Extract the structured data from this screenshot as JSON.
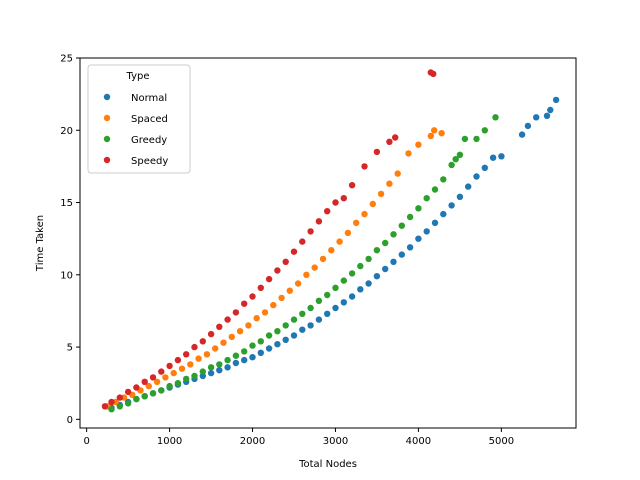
{
  "chart_data": {
    "type": "scatter",
    "title": "",
    "xlabel": "Total Nodes",
    "ylabel": "Time Taken",
    "xlim": [
      -80,
      5900
    ],
    "ylim": [
      -0.6,
      25
    ],
    "xticks": [
      0,
      1000,
      2000,
      3000,
      4000,
      5000
    ],
    "yticks": [
      0,
      5,
      10,
      15,
      20,
      25
    ],
    "grid": false,
    "legend": {
      "title": "Type",
      "placement": "top-left"
    },
    "series": [
      {
        "name": "Normal",
        "color": "#1f77b4",
        "points": [
          [
            300,
            0.8
          ],
          [
            400,
            1.0
          ],
          [
            500,
            1.2
          ],
          [
            600,
            1.4
          ],
          [
            700,
            1.6
          ],
          [
            800,
            1.8
          ],
          [
            900,
            2.0
          ],
          [
            1000,
            2.2
          ],
          [
            1100,
            2.4
          ],
          [
            1200,
            2.6
          ],
          [
            1300,
            2.8
          ],
          [
            1400,
            3.0
          ],
          [
            1500,
            3.2
          ],
          [
            1600,
            3.4
          ],
          [
            1700,
            3.6
          ],
          [
            1800,
            3.9
          ],
          [
            1900,
            4.1
          ],
          [
            2000,
            4.3
          ],
          [
            2100,
            4.6
          ],
          [
            2200,
            4.9
          ],
          [
            2300,
            5.2
          ],
          [
            2400,
            5.5
          ],
          [
            2500,
            5.8
          ],
          [
            2600,
            6.2
          ],
          [
            2700,
            6.5
          ],
          [
            2800,
            6.9
          ],
          [
            2900,
            7.3
          ],
          [
            3000,
            7.7
          ],
          [
            3100,
            8.1
          ],
          [
            3200,
            8.5
          ],
          [
            3300,
            9.0
          ],
          [
            3400,
            9.4
          ],
          [
            3500,
            9.9
          ],
          [
            3600,
            10.4
          ],
          [
            3700,
            10.9
          ],
          [
            3800,
            11.4
          ],
          [
            3900,
            11.9
          ],
          [
            4000,
            12.5
          ],
          [
            4100,
            13.0
          ],
          [
            4200,
            13.6
          ],
          [
            4300,
            14.2
          ],
          [
            4400,
            14.8
          ],
          [
            4500,
            15.4
          ],
          [
            4600,
            16.1
          ],
          [
            4700,
            16.8
          ],
          [
            4800,
            17.4
          ],
          [
            4900,
            18.1
          ],
          [
            5000,
            18.2
          ],
          [
            5250,
            19.7
          ],
          [
            5320,
            20.3
          ],
          [
            5420,
            20.9
          ],
          [
            5550,
            21.0
          ],
          [
            5590,
            21.4
          ],
          [
            5660,
            22.1
          ]
        ]
      },
      {
        "name": "Spaced",
        "color": "#ff7f0e",
        "points": [
          [
            250,
            0.9
          ],
          [
            350,
            1.2
          ],
          [
            450,
            1.5
          ],
          [
            550,
            1.7
          ],
          [
            650,
            2.0
          ],
          [
            750,
            2.3
          ],
          [
            850,
            2.6
          ],
          [
            950,
            2.9
          ],
          [
            1050,
            3.2
          ],
          [
            1150,
            3.5
          ],
          [
            1250,
            3.8
          ],
          [
            1350,
            4.2
          ],
          [
            1450,
            4.5
          ],
          [
            1550,
            4.9
          ],
          [
            1650,
            5.3
          ],
          [
            1750,
            5.7
          ],
          [
            1850,
            6.1
          ],
          [
            1950,
            6.5
          ],
          [
            2050,
            7.0
          ],
          [
            2150,
            7.4
          ],
          [
            2250,
            7.9
          ],
          [
            2350,
            8.4
          ],
          [
            2450,
            8.9
          ],
          [
            2550,
            9.4
          ],
          [
            2650,
            10.0
          ],
          [
            2750,
            10.5
          ],
          [
            2850,
            11.1
          ],
          [
            2950,
            11.7
          ],
          [
            3050,
            12.3
          ],
          [
            3150,
            12.9
          ],
          [
            3250,
            13.6
          ],
          [
            3350,
            14.2
          ],
          [
            3450,
            14.9
          ],
          [
            3550,
            15.6
          ],
          [
            3650,
            16.3
          ],
          [
            3750,
            17.0
          ],
          [
            3880,
            18.4
          ],
          [
            4000,
            19.0
          ],
          [
            4150,
            19.6
          ],
          [
            4190,
            20.0
          ],
          [
            4280,
            19.8
          ]
        ]
      },
      {
        "name": "Greedy",
        "color": "#2ca02c",
        "points": [
          [
            300,
            0.7
          ],
          [
            400,
            0.9
          ],
          [
            500,
            1.1
          ],
          [
            600,
            1.4
          ],
          [
            700,
            1.6
          ],
          [
            800,
            1.8
          ],
          [
            900,
            2.0
          ],
          [
            1000,
            2.3
          ],
          [
            1100,
            2.5
          ],
          [
            1200,
            2.8
          ],
          [
            1300,
            3.0
          ],
          [
            1400,
            3.3
          ],
          [
            1500,
            3.6
          ],
          [
            1600,
            3.8
          ],
          [
            1700,
            4.1
          ],
          [
            1800,
            4.4
          ],
          [
            1900,
            4.7
          ],
          [
            2000,
            5.1
          ],
          [
            2100,
            5.4
          ],
          [
            2200,
            5.8
          ],
          [
            2300,
            6.1
          ],
          [
            2400,
            6.5
          ],
          [
            2500,
            6.9
          ],
          [
            2600,
            7.3
          ],
          [
            2700,
            7.7
          ],
          [
            2800,
            8.2
          ],
          [
            2900,
            8.6
          ],
          [
            3000,
            9.1
          ],
          [
            3100,
            9.6
          ],
          [
            3200,
            10.1
          ],
          [
            3300,
            10.6
          ],
          [
            3400,
            11.1
          ],
          [
            3500,
            11.7
          ],
          [
            3600,
            12.2
          ],
          [
            3700,
            12.8
          ],
          [
            3800,
            13.4
          ],
          [
            3900,
            14.0
          ],
          [
            4000,
            14.6
          ],
          [
            4100,
            15.3
          ],
          [
            4200,
            15.9
          ],
          [
            4300,
            16.6
          ],
          [
            4400,
            17.6
          ],
          [
            4450,
            18.0
          ],
          [
            4500,
            18.3
          ],
          [
            4560,
            19.4
          ],
          [
            4700,
            19.4
          ],
          [
            4800,
            20.0
          ],
          [
            4930,
            20.9
          ]
        ]
      },
      {
        "name": "Speedy",
        "color": "#d62728",
        "points": [
          [
            220,
            0.9
          ],
          [
            300,
            1.2
          ],
          [
            400,
            1.5
          ],
          [
            500,
            1.9
          ],
          [
            600,
            2.2
          ],
          [
            700,
            2.6
          ],
          [
            800,
            2.9
          ],
          [
            900,
            3.3
          ],
          [
            1000,
            3.7
          ],
          [
            1100,
            4.1
          ],
          [
            1200,
            4.5
          ],
          [
            1300,
            5.0
          ],
          [
            1400,
            5.4
          ],
          [
            1500,
            5.9
          ],
          [
            1600,
            6.4
          ],
          [
            1700,
            6.9
          ],
          [
            1800,
            7.4
          ],
          [
            1900,
            8.0
          ],
          [
            2000,
            8.5
          ],
          [
            2100,
            9.1
          ],
          [
            2200,
            9.7
          ],
          [
            2300,
            10.3
          ],
          [
            2400,
            10.9
          ],
          [
            2500,
            11.6
          ],
          [
            2600,
            12.3
          ],
          [
            2700,
            13.0
          ],
          [
            2800,
            13.7
          ],
          [
            2900,
            14.4
          ],
          [
            3000,
            15.0
          ],
          [
            3100,
            15.3
          ],
          [
            3200,
            16.2
          ],
          [
            3350,
            17.5
          ],
          [
            3500,
            18.5
          ],
          [
            3650,
            19.2
          ],
          [
            3720,
            19.5
          ],
          [
            4150,
            24.0
          ],
          [
            4180,
            23.9
          ]
        ]
      }
    ]
  }
}
